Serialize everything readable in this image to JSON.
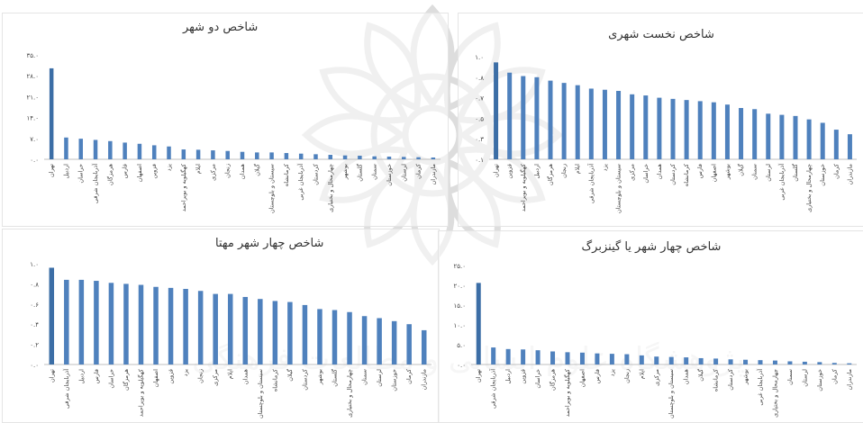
{
  "colors": {
    "bar": "#4f81bd",
    "bar_dark": "#3c6ea6",
    "axis": "#bfbfbf",
    "text": "#444444",
    "watermark": "#c8c8c8"
  },
  "watermark": {
    "icon": "floral-emblem-watermark",
    "text": "پژوهشگاه علوم انسانی و مطالعات فرهنگی"
  },
  "chart_data": [
    {
      "type": "bar",
      "title": "شاخص دو شهر",
      "ylim": [
        0,
        35
      ],
      "yticks": [
        "۰.۰",
        "۷.۰",
        "۱۴.۰",
        "۲۱.۰",
        "۲۸.۰",
        "۳۵.۰"
      ],
      "categories": [
        "تهران",
        "اردبیل",
        "خراسان",
        "آذربایجان شرقی",
        "هرمزگان",
        "فارس",
        "اصفهان",
        "قزوین",
        "یزد",
        "کهگیلویه و بویراحمد",
        "ایلام",
        "مرکزی",
        "زنجان",
        "همدان",
        "گیلان",
        "سیستان و بلوچستان",
        "کرمانشاه",
        "آذربایجان غربی",
        "کردستان",
        "چهارمحال و بختیاری",
        "بوشهر",
        "گلستان",
        "سمنان",
        "خوزستان",
        "لرستان",
        "کرمان",
        "مازندران"
      ],
      "values": [
        30.5,
        7.3,
        6.9,
        6.5,
        6.1,
        5.6,
        5.2,
        4.7,
        4.3,
        3.3,
        3.2,
        3.0,
        2.8,
        2.5,
        2.3,
        2.3,
        2.1,
        1.9,
        1.7,
        1.5,
        1.3,
        1.2,
        1.0,
        0.9,
        0.8,
        0.7,
        0.6
      ]
    },
    {
      "type": "bar",
      "title": "شاخص نخست شهری",
      "ylim": [
        0.1,
        1.0
      ],
      "yticks": [
        "۰.۱",
        "۰.۳",
        "۰.۵",
        "۰.۷",
        "۰.۸",
        "۱.۰"
      ],
      "categories": [
        "تهران",
        "قزوین",
        "کهگیلویه و بویراحمد",
        "اردبیل",
        "هرمزگان",
        "زنجان",
        "ایلام",
        "آذربایجان شرقی",
        "یزد",
        "سیستان و بلوچستان",
        "مرکزی",
        "خراسان",
        "همدان",
        "کردستان",
        "کرمانشاه",
        "فارس",
        "اصفهان",
        "بوشهر",
        "گیلان",
        "سمنان",
        "لرستان",
        "آذربایجان غربی",
        "گلستان",
        "چهارمحال و بختیاری",
        "خوزستان",
        "کرمان",
        "مازندران"
      ],
      "values": [
        0.95,
        0.86,
        0.83,
        0.82,
        0.79,
        0.77,
        0.75,
        0.72,
        0.71,
        0.7,
        0.67,
        0.66,
        0.64,
        0.63,
        0.62,
        0.61,
        0.6,
        0.58,
        0.55,
        0.54,
        0.5,
        0.49,
        0.48,
        0.45,
        0.42,
        0.36,
        0.32
      ]
    },
    {
      "type": "bar",
      "title": "شاخص چهار شهر مهتا",
      "ylim": [
        0.0,
        1.0
      ],
      "yticks": [
        "۰.۰",
        "۰.۲",
        "۰.۴",
        "۰.۶",
        "۰.۸",
        "۱.۰"
      ],
      "categories": [
        "تهران",
        "آذربایجان شرقی",
        "اردبیل",
        "فارس",
        "خراسان",
        "هرمزگان",
        "کهگیلویه و بویراحمد",
        "اصفهان",
        "قزوین",
        "یزد",
        "زنجان",
        "مرکزی",
        "ایلام",
        "همدان",
        "سیستان و بلوچستان",
        "کرمانشاه",
        "گیلان",
        "کردستان",
        "بوشهر",
        "گلستان",
        "چهارمحال و بختیاری",
        "سمنان",
        "لرستان",
        "خوزستان",
        "کرمان",
        "مازندران"
      ],
      "values": [
        0.96,
        0.84,
        0.84,
        0.83,
        0.81,
        0.8,
        0.79,
        0.77,
        0.76,
        0.75,
        0.73,
        0.7,
        0.7,
        0.67,
        0.65,
        0.63,
        0.62,
        0.59,
        0.55,
        0.54,
        0.52,
        0.48,
        0.46,
        0.43,
        0.4,
        0.34
      ]
    },
    {
      "type": "bar",
      "title": "شاخص چهار شهر یا گینزبرگ",
      "ylim": [
        0,
        25
      ],
      "yticks": [
        "۰.۰",
        "۵.۰",
        "۱۰.۰",
        "۱۵.۰",
        "۲۰.۰",
        "۲۵.۰"
      ],
      "categories": [
        "تهران",
        "آذربایجان شرقی",
        "اردبیل",
        "قزوین",
        "خراسان",
        "هرمزگان",
        "کهگیلویه و بویراحمد",
        "اصفهان",
        "فارس",
        "یزد",
        "زنجان",
        "ایلام",
        "مرکزی",
        "سیستان و بلوچستان",
        "همدان",
        "گیلان",
        "کرمانشاه",
        "کردستان",
        "بوشهر",
        "آذربایجان غربی",
        "چهارمحال و بختیاری",
        "سمنان",
        "لرستان",
        "خوزستان",
        "کرمان",
        "مازندران"
      ],
      "values": [
        20.6,
        4.3,
        3.9,
        3.8,
        3.6,
        3.3,
        3.1,
        3.0,
        2.8,
        2.7,
        2.6,
        2.3,
        2.0,
        1.9,
        1.8,
        1.6,
        1.5,
        1.3,
        1.2,
        1.1,
        1.0,
        0.8,
        0.7,
        0.6,
        0.4,
        0.3
      ]
    }
  ]
}
